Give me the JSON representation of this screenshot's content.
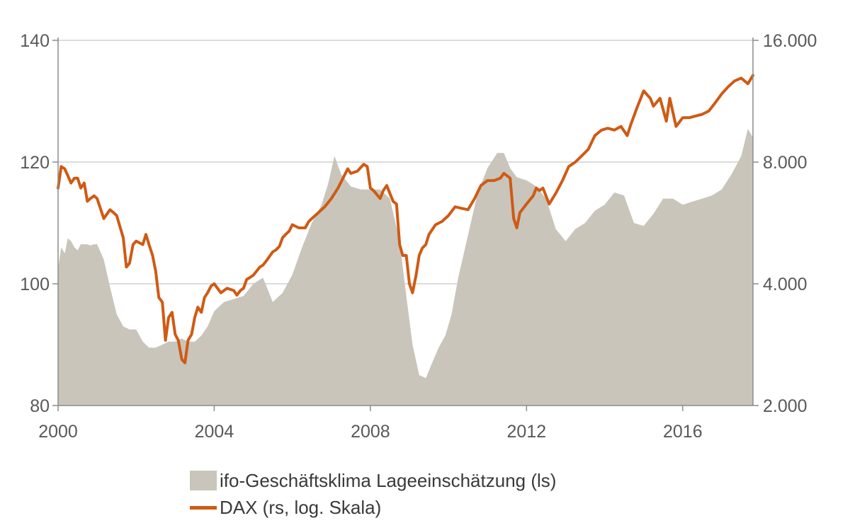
{
  "chart_data": {
    "type": "area",
    "x_range": [
      2000,
      2017.8
    ],
    "x_ticks": [
      "2000",
      "2004",
      "2008",
      "2012",
      "2016"
    ],
    "y_left": {
      "ticks": [
        "80",
        "100",
        "120",
        "140"
      ],
      "range": [
        80,
        140
      ]
    },
    "y_right": {
      "ticks": [
        "2.000",
        "4.000",
        "8.000",
        "16.000"
      ],
      "range": [
        2000,
        16000
      ],
      "scale": "log"
    },
    "grid": true,
    "colors": {
      "ifo": "#c9c5bb",
      "dax": "#cf5a14",
      "grid": "#c8c8c8",
      "axis": "#8c8c8c"
    },
    "series": [
      {
        "name": "ifo-Geschäftsklima Lageeinschätzung (ls)",
        "type": "area",
        "axis": "left",
        "x": [
          2000.0,
          2000.08,
          2000.17,
          2000.25,
          2000.33,
          2000.42,
          2000.5,
          2000.58,
          2000.67,
          2000.75,
          2000.83,
          2000.92,
          2001.0,
          2001.17,
          2001.33,
          2001.5,
          2001.67,
          2001.83,
          2002.0,
          2002.17,
          2002.33,
          2002.5,
          2002.67,
          2002.83,
          2003.0,
          2003.17,
          2003.33,
          2003.5,
          2003.67,
          2003.83,
          2004.0,
          2004.25,
          2004.5,
          2004.75,
          2005.0,
          2005.25,
          2005.5,
          2005.75,
          2006.0,
          2006.25,
          2006.5,
          2006.75,
          2006.92,
          2007.08,
          2007.25,
          2007.5,
          2007.75,
          2008.0,
          2008.25,
          2008.5,
          2008.75,
          2008.92,
          2009.08,
          2009.25,
          2009.42,
          2009.58,
          2009.75,
          2009.92,
          2010.08,
          2010.25,
          2010.5,
          2010.75,
          2011.0,
          2011.25,
          2011.42,
          2011.58,
          2011.75,
          2012.0,
          2012.25,
          2012.5,
          2012.75,
          2013.0,
          2013.25,
          2013.5,
          2013.75,
          2014.0,
          2014.25,
          2014.5,
          2014.75,
          2015.0,
          2015.25,
          2015.5,
          2015.75,
          2016.0,
          2016.25,
          2016.5,
          2016.75,
          2017.0,
          2017.25,
          2017.5,
          2017.67,
          2017.8
        ],
        "values": [
          102.5,
          106,
          105,
          107.5,
          107,
          106,
          105.5,
          106.5,
          106.5,
          106.5,
          106.3,
          106.5,
          106.5,
          104,
          99.5,
          95,
          93,
          92.5,
          92.5,
          90.5,
          89.5,
          89.5,
          90,
          90.5,
          90.5,
          91,
          90.5,
          90.5,
          91.5,
          93,
          95.5,
          97,
          97.5,
          98,
          100,
          101,
          97,
          98.5,
          101.5,
          106,
          110,
          113,
          116.5,
          121,
          118,
          116,
          115.5,
          115.5,
          115.5,
          114,
          107,
          98,
          90,
          85,
          84.5,
          87,
          89.5,
          91.5,
          95,
          101,
          108,
          115,
          119,
          121.5,
          121.5,
          119,
          117.5,
          117,
          116,
          114,
          109,
          107,
          109,
          110,
          112,
          113,
          115,
          114.5,
          110,
          109.5,
          111.5,
          114,
          114,
          113,
          113.5,
          114,
          114.5,
          115.5,
          118,
          121,
          125.5,
          124
        ]
      },
      {
        "name": "DAX (rs, log. Skala)",
        "type": "line",
        "axis": "right",
        "x": [
          2000.0,
          2000.08,
          2000.17,
          2000.25,
          2000.33,
          2000.42,
          2000.5,
          2000.58,
          2000.67,
          2000.75,
          2000.83,
          2000.92,
          2001.0,
          2001.17,
          2001.33,
          2001.42,
          2001.5,
          2001.67,
          2001.75,
          2001.83,
          2001.92,
          2002.0,
          2002.17,
          2002.25,
          2002.33,
          2002.42,
          2002.5,
          2002.58,
          2002.67,
          2002.75,
          2002.83,
          2002.92,
          2003.0,
          2003.08,
          2003.17,
          2003.25,
          2003.33,
          2003.42,
          2003.5,
          2003.58,
          2003.67,
          2003.75,
          2003.83,
          2003.92,
          2004.0,
          2004.17,
          2004.33,
          2004.5,
          2004.58,
          2004.67,
          2004.75,
          2004.83,
          2004.92,
          2005.0,
          2005.17,
          2005.25,
          2005.33,
          2005.5,
          2005.58,
          2005.67,
          2005.75,
          2005.83,
          2005.92,
          2006.0,
          2006.17,
          2006.33,
          2006.42,
          2006.5,
          2006.67,
          2006.83,
          2007.0,
          2007.17,
          2007.33,
          2007.42,
          2007.5,
          2007.67,
          2007.83,
          2007.92,
          2008.0,
          2008.08,
          2008.25,
          2008.33,
          2008.42,
          2008.58,
          2008.67,
          2008.75,
          2008.83,
          2008.92,
          2009.0,
          2009.08,
          2009.17,
          2009.25,
          2009.33,
          2009.42,
          2009.5,
          2009.67,
          2009.83,
          2010.0,
          2010.17,
          2010.33,
          2010.5,
          2010.67,
          2010.83,
          2011.0,
          2011.17,
          2011.33,
          2011.42,
          2011.5,
          2011.58,
          2011.67,
          2011.75,
          2011.83,
          2012.0,
          2012.17,
          2012.25,
          2012.33,
          2012.42,
          2012.58,
          2012.75,
          2012.92,
          2013.08,
          2013.25,
          2013.42,
          2013.58,
          2013.75,
          2013.92,
          2014.08,
          2014.25,
          2014.42,
          2014.58,
          2014.67,
          2014.83,
          2015.0,
          2015.17,
          2015.25,
          2015.42,
          2015.58,
          2015.67,
          2015.83,
          2016.0,
          2016.17,
          2016.33,
          2016.5,
          2016.67,
          2016.83,
          2017.0,
          2017.17,
          2017.33,
          2017.5,
          2017.67,
          2017.8
        ],
        "values": [
          6900,
          7800,
          7700,
          7400,
          7100,
          7300,
          7300,
          6900,
          7100,
          6400,
          6500,
          6600,
          6500,
          5800,
          6100,
          6000,
          5900,
          5200,
          4400,
          4500,
          5000,
          5100,
          5000,
          5300,
          5000,
          4700,
          4300,
          3700,
          3600,
          2900,
          3300,
          3400,
          3000,
          2900,
          2600,
          2550,
          2900,
          3000,
          3300,
          3500,
          3400,
          3700,
          3800,
          3950,
          4000,
          3800,
          3900,
          3850,
          3750,
          3850,
          3900,
          4100,
          4150,
          4200,
          4400,
          4450,
          4550,
          4800,
          4850,
          4950,
          5200,
          5300,
          5400,
          5600,
          5500,
          5500,
          5700,
          5800,
          6000,
          6200,
          6500,
          6900,
          7400,
          7700,
          7500,
          7600,
          7900,
          7800,
          6900,
          6800,
          6500,
          6800,
          7000,
          6400,
          6300,
          5000,
          4700,
          4700,
          4000,
          3800,
          4200,
          4700,
          4900,
          5000,
          5300,
          5600,
          5700,
          5900,
          6200,
          6150,
          6100,
          6500,
          7000,
          7200,
          7200,
          7300,
          7500,
          7400,
          7300,
          5800,
          5500,
          6000,
          6300,
          6600,
          6900,
          6800,
          6900,
          6300,
          6700,
          7200,
          7800,
          8000,
          8300,
          8600,
          9300,
          9600,
          9700,
          9600,
          9800,
          9300,
          9900,
          10900,
          12000,
          11500,
          11000,
          11500,
          10100,
          11500,
          9800,
          10300,
          10300,
          10400,
          10500,
          10700,
          11200,
          11800,
          12300,
          12700,
          12900,
          12500,
          13100
        ]
      }
    ]
  },
  "legend": {
    "ifo_label": "ifo-Geschäftsklima Lageeinschätzung (ls)",
    "dax_label": "DAX (rs, log. Skala)"
  }
}
